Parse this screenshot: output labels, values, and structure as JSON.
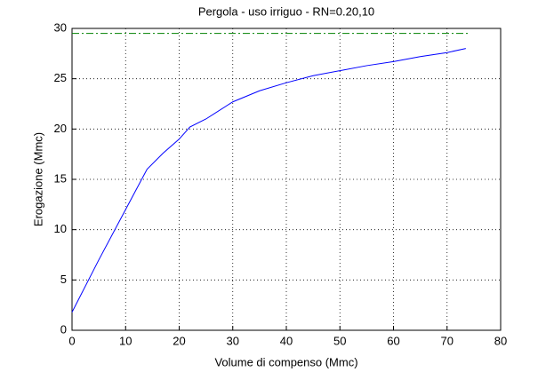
{
  "chart_data": {
    "type": "line",
    "title": "Pergola  -  uso irriguo  -   RN=0.20,10",
    "x_label": "Volume di compenso (Mmc)",
    "y_label": "Erogazione (Mmc)",
    "series": [
      {
        "color": "#0000ff",
        "style": "solid",
        "x": [
          0,
          5,
          10,
          14,
          17,
          20,
          22,
          25,
          30,
          35,
          40,
          45,
          50,
          55,
          60,
          65,
          70,
          73.5
        ],
        "values": [
          1.8,
          7,
          12,
          16,
          17.6,
          19,
          20.2,
          21,
          22.7,
          23.8,
          24.6,
          25.3,
          25.8,
          26.3,
          26.7,
          27.2,
          27.6,
          28
        ]
      },
      {
        "color": "#008000",
        "style": "dashdot",
        "x": [
          0,
          74
        ],
        "values": [
          29.5,
          29.5
        ]
      }
    ],
    "xlim": [
      0,
      80
    ],
    "xticks": [
      0,
      10,
      20,
      30,
      40,
      50,
      60,
      70,
      80
    ],
    "ylim": [
      0,
      30
    ],
    "yticks": [
      0,
      5,
      10,
      15,
      20,
      25,
      30
    ],
    "grid": true
  }
}
